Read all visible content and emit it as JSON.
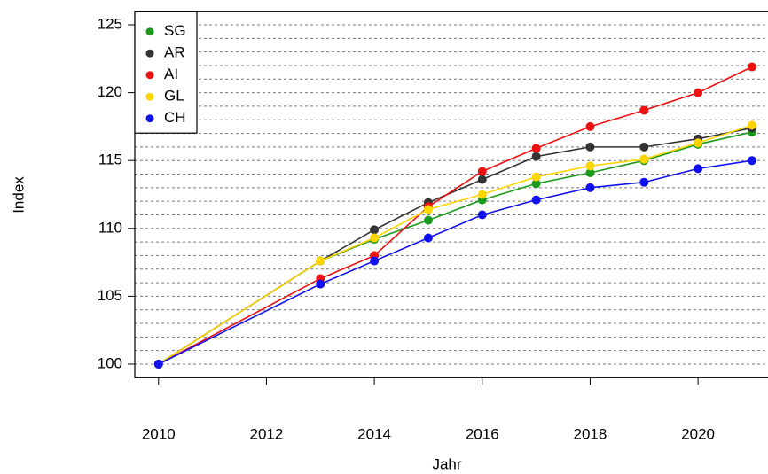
{
  "chart_data": {
    "type": "line",
    "x_label": "Jahr",
    "y_label": "Index",
    "x": [
      2010,
      2013,
      2014,
      2015,
      2016,
      2017,
      2018,
      2019,
      2020,
      2021
    ],
    "series": [
      {
        "name": "SG",
        "color": "#1a9a1a",
        "values": [
          100,
          107.6,
          109.2,
          110.6,
          112.1,
          113.3,
          114.1,
          115.0,
          116.2,
          117.1
        ]
      },
      {
        "name": "AR",
        "color": "#333333",
        "values": [
          100,
          107.6,
          109.9,
          111.9,
          113.6,
          115.3,
          116.0,
          116.0,
          116.6,
          117.4
        ]
      },
      {
        "name": "AI",
        "color": "#ee1111",
        "values": [
          100,
          106.3,
          108.0,
          111.6,
          114.2,
          115.9,
          117.5,
          118.7,
          120.0,
          121.9
        ]
      },
      {
        "name": "GL",
        "color": "#ffd500",
        "values": [
          100,
          107.6,
          109.3,
          111.4,
          112.5,
          113.8,
          114.6,
          115.1,
          116.3,
          117.6
        ]
      },
      {
        "name": "CH",
        "color": "#1111ee",
        "values": [
          100,
          105.9,
          107.6,
          109.3,
          111.0,
          112.1,
          113.0,
          113.4,
          114.4,
          115.0
        ]
      }
    ],
    "xlim": [
      2009.56,
      2021.44
    ],
    "xticks": [
      2010,
      2012,
      2014,
      2016,
      2018,
      2020
    ],
    "ylim": [
      99,
      126
    ],
    "yticks": [
      100,
      105,
      110,
      115,
      120,
      125
    ],
    "grid_yticks": [
      100,
      101,
      102,
      103,
      104,
      105,
      106,
      107,
      108,
      109,
      110,
      111,
      112,
      113,
      114,
      115,
      116,
      117,
      118,
      119,
      120,
      121,
      122,
      123,
      124,
      125
    ],
    "grid": true,
    "legend": "top-left"
  }
}
